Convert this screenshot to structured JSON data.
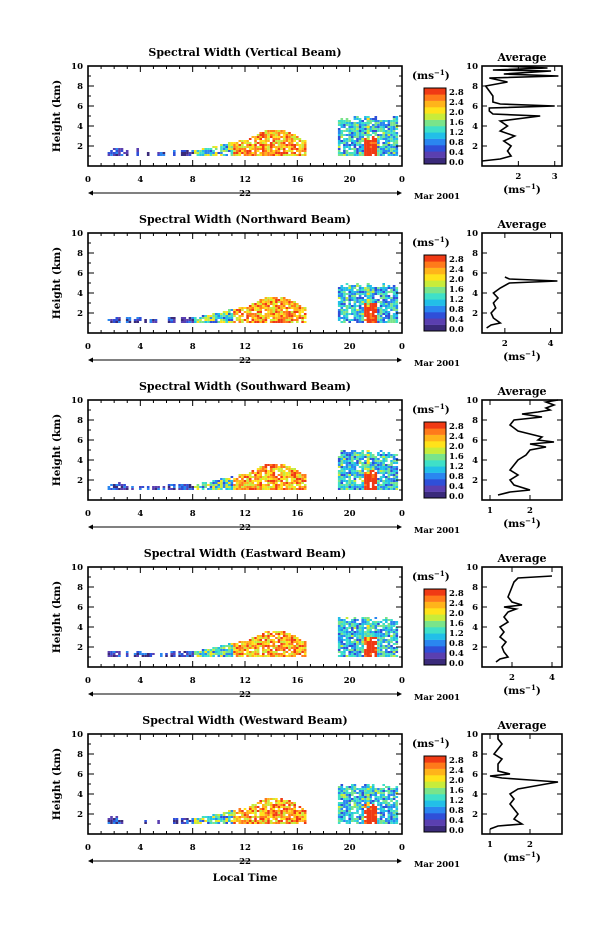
{
  "figure": {
    "date_label": "Mar 2001",
    "date_day": "22",
    "xlabel": "Local Time",
    "unit_label": "(ms",
    "unit_exponent": "−1"
  },
  "colorbar": {
    "ticks": [
      "2.8",
      "2.4",
      "2.0",
      "1.6",
      "1.2",
      "0.8",
      "0.4",
      "0.0"
    ],
    "colors": [
      "#3a2a7a",
      "#5a3fb0",
      "#2f4fd8",
      "#2a86f0",
      "#22bfe8",
      "#3fe0c8",
      "#7ae48a",
      "#c8ec3a",
      "#ffe21a",
      "#ffb41a",
      "#ff7a1a",
      "#f03a14"
    ]
  },
  "chart_data": [
    {
      "type": "heatmap",
      "title": "Spectral Width (Vertical Beam)",
      "xlabel": "",
      "ylabel": "Height (km)",
      "xlim": [
        0,
        24
      ],
      "ylim": [
        0,
        10
      ],
      "xticks": [
        "0",
        "4",
        "8",
        "12",
        "16",
        "20",
        "0"
      ],
      "yticks": [
        "2",
        "4",
        "6",
        "8",
        "10"
      ],
      "average": {
        "title": "Average",
        "xlabel": "(ms",
        "xlim": [
          1,
          3.2
        ],
        "xticks": [
          "2",
          "3"
        ],
        "xtick_values": [
          2,
          3
        ],
        "profile": [
          [
            1.0,
            0.5
          ],
          [
            1.5,
            0.7
          ],
          [
            1.8,
            1.0
          ],
          [
            1.7,
            1.5
          ],
          [
            1.8,
            2.0
          ],
          [
            1.6,
            2.5
          ],
          [
            1.9,
            3.0
          ],
          [
            1.5,
            3.5
          ],
          [
            1.7,
            4.0
          ],
          [
            1.5,
            4.5
          ],
          [
            2.6,
            5.0
          ],
          [
            1.3,
            5.2
          ],
          [
            1.2,
            5.5
          ],
          [
            1.2,
            5.8
          ],
          [
            3.0,
            6.0
          ],
          [
            1.5,
            6.2
          ],
          [
            1.3,
            6.4
          ],
          [
            1.3,
            7.0
          ],
          [
            1.2,
            7.5
          ],
          [
            1.1,
            8.0
          ],
          [
            1.7,
            8.4
          ],
          [
            1.2,
            8.8
          ],
          [
            3.1,
            9.0
          ],
          [
            1.6,
            9.2
          ],
          [
            2.9,
            9.5
          ],
          [
            1.3,
            9.6
          ],
          [
            2.8,
            9.8
          ],
          [
            1.5,
            10.0
          ]
        ]
      }
    },
    {
      "type": "heatmap",
      "title": "Spectral Width (Northward Beam)",
      "xlabel": "",
      "ylabel": "Height (km)",
      "xlim": [
        0,
        24
      ],
      "ylim": [
        0,
        10
      ],
      "xticks": [
        "0",
        "4",
        "8",
        "12",
        "16",
        "20",
        "0"
      ],
      "yticks": [
        "2",
        "4",
        "6",
        "8",
        "10"
      ],
      "average": {
        "title": "Average",
        "xlabel": "(ms",
        "xlim": [
          1,
          4.5
        ],
        "xticks": [
          "2",
          "4"
        ],
        "xtick_values": [
          2,
          4
        ],
        "profile": [
          [
            1.2,
            0.5
          ],
          [
            1.4,
            0.8
          ],
          [
            1.8,
            1.0
          ],
          [
            1.5,
            1.5
          ],
          [
            1.4,
            2.0
          ],
          [
            1.6,
            2.5
          ],
          [
            1.5,
            3.0
          ],
          [
            1.7,
            3.5
          ],
          [
            1.5,
            4.0
          ],
          [
            1.8,
            4.5
          ],
          [
            2.2,
            5.0
          ],
          [
            4.3,
            5.2
          ],
          [
            2.2,
            5.4
          ],
          [
            2.0,
            5.6
          ]
        ]
      }
    },
    {
      "type": "heatmap",
      "title": "Spectral Width (Southward Beam)",
      "xlabel": "",
      "ylabel": "Height (km)",
      "xlim": [
        0,
        24
      ],
      "ylim": [
        0,
        10
      ],
      "xticks": [
        "0",
        "4",
        "8",
        "12",
        "16",
        "20",
        "0"
      ],
      "yticks": [
        "2",
        "4",
        "6",
        "8",
        "10"
      ],
      "average": {
        "title": "Average",
        "xlabel": "(ms",
        "xlim": [
          0.8,
          2.8
        ],
        "xticks": [
          "1",
          "2"
        ],
        "xtick_values": [
          1,
          2
        ],
        "profile": [
          [
            1.2,
            0.5
          ],
          [
            1.5,
            0.8
          ],
          [
            2.0,
            1.0
          ],
          [
            1.6,
            1.5
          ],
          [
            1.5,
            2.0
          ],
          [
            1.7,
            2.5
          ],
          [
            1.5,
            3.0
          ],
          [
            1.6,
            3.5
          ],
          [
            1.7,
            4.0
          ],
          [
            1.9,
            4.5
          ],
          [
            2.0,
            5.0
          ],
          [
            2.4,
            5.3
          ],
          [
            2.0,
            5.6
          ],
          [
            2.6,
            5.8
          ],
          [
            2.2,
            6.0
          ],
          [
            2.3,
            6.3
          ],
          [
            2.0,
            6.6
          ],
          [
            1.7,
            6.9
          ],
          [
            1.6,
            7.2
          ],
          [
            1.5,
            7.5
          ],
          [
            1.6,
            8.0
          ],
          [
            2.3,
            8.3
          ],
          [
            1.8,
            8.6
          ],
          [
            2.2,
            8.8
          ],
          [
            2.5,
            9.0
          ],
          [
            2.4,
            9.2
          ],
          [
            2.6,
            9.5
          ],
          [
            2.4,
            9.8
          ],
          [
            2.7,
            10.0
          ]
        ]
      }
    },
    {
      "type": "heatmap",
      "title": "Spectral Width (Eastward Beam)",
      "xlabel": "",
      "ylabel": "Height (km)",
      "xlim": [
        0,
        24
      ],
      "ylim": [
        0,
        10
      ],
      "xticks": [
        "0",
        "4",
        "8",
        "12",
        "16",
        "20",
        "0"
      ],
      "yticks": [
        "2",
        "4",
        "6",
        "8",
        "10"
      ],
      "average": {
        "title": "Average",
        "xlabel": "(ms",
        "xlim": [
          0.5,
          4.5
        ],
        "xticks": [
          "2",
          "4"
        ],
        "xtick_values": [
          2,
          4
        ],
        "profile": [
          [
            1.2,
            0.5
          ],
          [
            1.4,
            0.8
          ],
          [
            1.8,
            1.0
          ],
          [
            1.6,
            1.5
          ],
          [
            1.5,
            2.0
          ],
          [
            1.7,
            2.5
          ],
          [
            1.4,
            3.0
          ],
          [
            1.6,
            3.5
          ],
          [
            1.4,
            4.0
          ],
          [
            1.8,
            4.5
          ],
          [
            1.6,
            5.0
          ],
          [
            1.8,
            5.5
          ],
          [
            2.2,
            5.8
          ],
          [
            1.6,
            6.0
          ],
          [
            2.5,
            6.2
          ],
          [
            2.0,
            6.5
          ],
          [
            1.8,
            7.0
          ],
          [
            1.9,
            7.5
          ],
          [
            2.0,
            8.0
          ],
          [
            2.1,
            8.5
          ],
          [
            2.3,
            8.9
          ],
          [
            4.0,
            9.1
          ]
        ]
      }
    },
    {
      "type": "heatmap",
      "title": "Spectral Width (Westward Beam)",
      "xlabel": "Local Time",
      "ylabel": "Height (km)",
      "xlim": [
        0,
        24
      ],
      "ylim": [
        0,
        10
      ],
      "xticks": [
        "0",
        "4",
        "8",
        "12",
        "16",
        "20",
        "0"
      ],
      "yticks": [
        "2",
        "4",
        "6",
        "8",
        "10"
      ],
      "average": {
        "title": "Average",
        "xlabel": "(ms",
        "xlim": [
          0.8,
          2.8
        ],
        "xticks": [
          "1",
          "2"
        ],
        "xtick_values": [
          1,
          2
        ],
        "profile": [
          [
            1.0,
            0.5
          ],
          [
            1.2,
            0.8
          ],
          [
            1.8,
            1.0
          ],
          [
            1.6,
            1.5
          ],
          [
            1.7,
            2.0
          ],
          [
            1.6,
            2.5
          ],
          [
            1.5,
            3.0
          ],
          [
            1.6,
            3.5
          ],
          [
            1.5,
            4.0
          ],
          [
            1.7,
            4.5
          ],
          [
            2.4,
            5.0
          ],
          [
            2.7,
            5.2
          ],
          [
            2.0,
            5.4
          ],
          [
            1.3,
            5.6
          ],
          [
            1.0,
            5.8
          ],
          [
            1.5,
            6.0
          ],
          [
            1.2,
            6.3
          ],
          [
            1.2,
            7.0
          ],
          [
            1.3,
            7.5
          ],
          [
            1.1,
            8.0
          ],
          [
            1.2,
            8.5
          ],
          [
            1.3,
            9.0
          ],
          [
            1.2,
            9.5
          ],
          [
            1.2,
            10.0
          ]
        ]
      }
    }
  ]
}
